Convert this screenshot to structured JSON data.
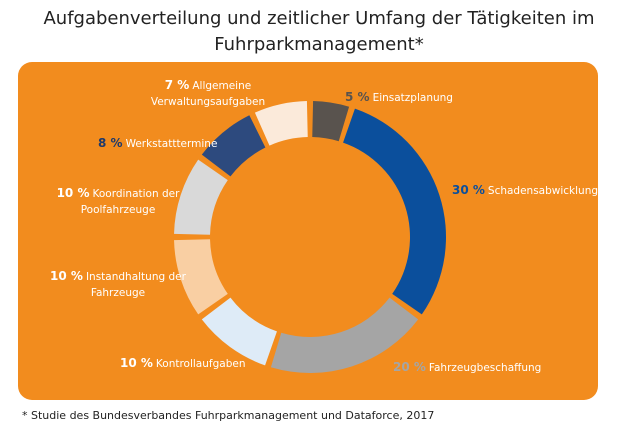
{
  "chart_data": {
    "type": "donut",
    "title": "Aufgabenverteilung und zeitlicher Umfang der Tätigkeiten im Fuhrparkmanagement*",
    "categories": [
      "Einsatzplanung",
      "Schadensabwicklung",
      "Fahrzeugbeschaffung",
      "Kontrollaufgaben",
      "Instandhaltung der Fahrzeuge",
      "Koordination der Poolfahrzeuge",
      "Werkstatttermine",
      "Allgemeine Verwaltungsaufgaben"
    ],
    "values": [
      5,
      30,
      20,
      10,
      10,
      10,
      8,
      7
    ],
    "value_labels": [
      "5 %",
      "30 %",
      "20 %",
      "10 %",
      "10 %",
      "10 %",
      "8 %",
      "7 %"
    ],
    "colors": [
      "#59534e",
      "#0b4f9c",
      "#a5a5a5",
      "#deebf7",
      "#f9cfa3",
      "#d9d9d9",
      "#2d4a7e",
      "#fbeada"
    ],
    "label_colors": [
      "#59534e",
      "#0b4f9c",
      "#a5a5a5",
      "#ffffff",
      "#ffffff",
      "#ffffff",
      "#1f3a6b",
      "#ffffff"
    ],
    "background": "#f28c1e",
    "footnote": "* Studie des Bundesverbandes Fuhrparkmanagement und Dataforce, 2017"
  }
}
